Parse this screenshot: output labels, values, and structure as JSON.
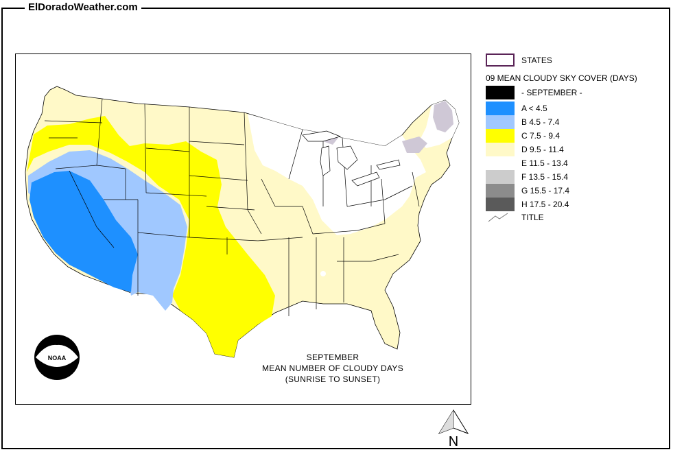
{
  "site": {
    "title": "ElDoradoWeather.com"
  },
  "legend": {
    "states_label": "STATES",
    "heading": "09 MEAN CLOUDY SKY COVER (DAYS)",
    "month_label": "- SEPTEMBER -",
    "title_label": "TITLE",
    "classes": [
      {
        "label": "A < 4.5",
        "color": "#1e90ff"
      },
      {
        "label": "B 4.5 - 7.4",
        "color": "#a0c8ff"
      },
      {
        "label": "C 7.5 - 9.4",
        "color": "#ffff00"
      },
      {
        "label": "D 9.5 - 11.4",
        "color": "#fff9c8"
      },
      {
        "label": "E 11.5 - 13.4",
        "color": "#ffffff"
      },
      {
        "label": "F 13.5 - 15.4",
        "color": "#cccccc"
      },
      {
        "label": "G 15.5 - 17.4",
        "color": "#8c8c8c"
      },
      {
        "label": "H 17.5 - 20.4",
        "color": "#5a5a5a"
      }
    ],
    "month_color": "#000000",
    "states_color": "#5a2457"
  },
  "map": {
    "caption": {
      "line1": "SEPTEMBER",
      "line2": "MEAN NUMBER OF CLOUDY DAYS",
      "line3": "(SUNRISE TO SUNSET)"
    },
    "logo_text": "NOAA"
  },
  "north_arrow": {
    "label": "N"
  }
}
